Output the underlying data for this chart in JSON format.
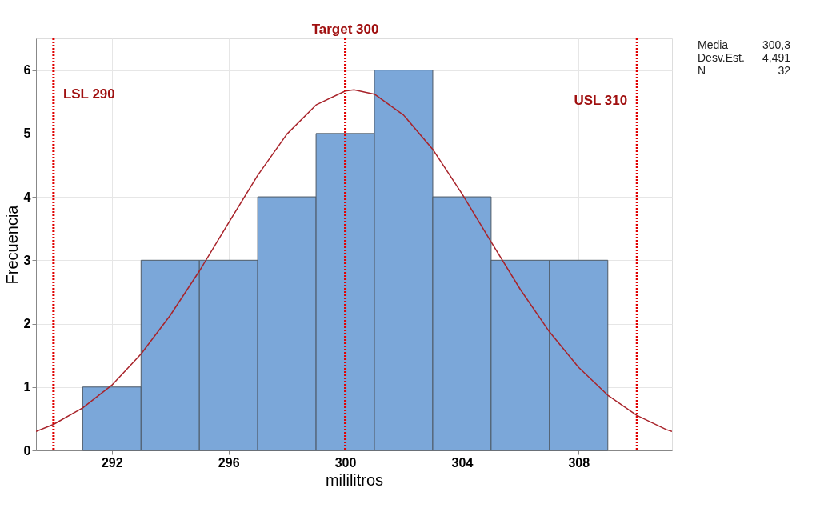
{
  "chart_data": {
    "type": "histogram",
    "xlabel": "mililitros",
    "ylabel": "Frecuencia",
    "series": [
      {
        "bins": [
          291,
          293,
          295,
          297,
          299,
          301,
          303,
          305,
          307,
          309
        ],
        "values": [
          1,
          3,
          3,
          4,
          5,
          6,
          4,
          3,
          3
        ],
        "color": "#7ba7d9"
      },
      {
        "type": "line",
        "color": "#a8232a",
        "x": [
          289.4,
          290,
          291,
          292,
          293,
          294,
          295,
          296,
          297,
          298,
          299,
          300,
          300.3,
          301,
          302,
          303,
          304,
          305,
          306,
          307,
          308,
          309,
          310,
          311,
          311.2
        ],
        "values": [
          0.3,
          0.41,
          0.67,
          1.03,
          1.52,
          2.13,
          2.83,
          3.59,
          4.34,
          4.99,
          5.45,
          5.67,
          5.69,
          5.62,
          5.29,
          4.75,
          4.05,
          3.29,
          2.54,
          1.87,
          1.31,
          0.87,
          0.55,
          0.33,
          0.3
        ]
      }
    ],
    "xlim": [
      289.4,
      311.2
    ],
    "xticks": [
      292,
      296,
      300,
      304,
      308
    ],
    "ylim": [
      0,
      6.5
    ],
    "yticks": [
      0,
      1,
      2,
      3,
      4,
      5,
      6
    ],
    "ref_lines": [
      {
        "axis": "x",
        "value": 290,
        "label": "LSL 290",
        "color": "#e00000",
        "line_style": "dotted"
      },
      {
        "axis": "x",
        "value": 300,
        "label": "Target 300",
        "color": "#e00000",
        "line_style": "dotted"
      },
      {
        "axis": "x",
        "value": 310,
        "label": "USL 310",
        "color": "#e00000",
        "line_style": "dotted"
      }
    ],
    "annotations": [
      "Media 300,3",
      "Desv.Est. 4,491",
      "N 32"
    ],
    "grid": true
  }
}
